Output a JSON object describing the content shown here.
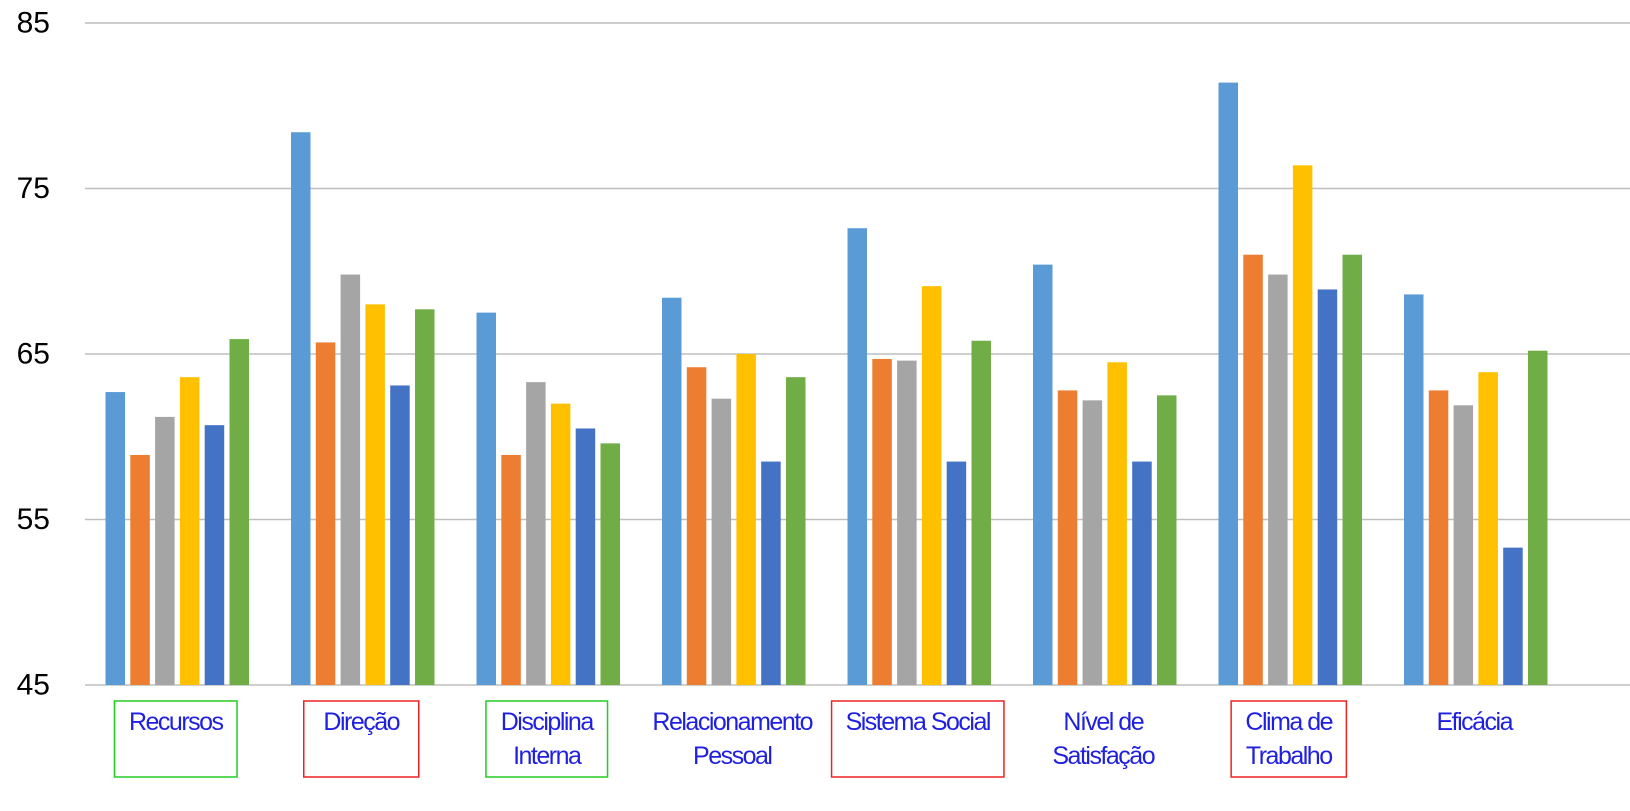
{
  "chart_data": {
    "type": "bar",
    "title": "",
    "xlabel": "",
    "ylabel": "",
    "ylim": [
      45,
      85
    ],
    "yticks": [
      45,
      55,
      65,
      75,
      85
    ],
    "grid": true,
    "legend": "none",
    "categories": [
      {
        "lines": [
          "Recursos"
        ],
        "box": "green"
      },
      {
        "lines": [
          "Direção"
        ],
        "box": "red"
      },
      {
        "lines": [
          "Disciplina",
          "Interna"
        ],
        "box": "green"
      },
      {
        "lines": [
          "Relacionamento",
          "Pessoal"
        ],
        "box": "none"
      },
      {
        "lines": [
          "Sistema Social"
        ],
        "box": "red"
      },
      {
        "lines": [
          "Nível de",
          "Satisfação"
        ],
        "box": "none"
      },
      {
        "lines": [
          "Clima de",
          "Trabalho"
        ],
        "box": "red"
      },
      {
        "lines": [
          "Eficácia"
        ],
        "box": "none"
      }
    ],
    "series": [
      {
        "color": "#5b9bd5",
        "values": [
          62.7,
          78.4,
          67.5,
          68.4,
          72.6,
          70.4,
          81.4,
          68.6
        ]
      },
      {
        "color": "#ed7d31",
        "values": [
          58.9,
          65.7,
          58.9,
          64.2,
          64.7,
          62.8,
          71.0,
          62.8
        ]
      },
      {
        "color": "#a5a5a5",
        "values": [
          61.2,
          69.8,
          63.3,
          62.3,
          64.6,
          62.2,
          69.8,
          61.9
        ]
      },
      {
        "color": "#ffc000",
        "values": [
          63.6,
          68.0,
          62.0,
          65.0,
          69.1,
          64.5,
          76.4,
          63.9
        ]
      },
      {
        "color": "#4472c4",
        "values": [
          60.7,
          63.1,
          60.5,
          58.5,
          58.5,
          58.5,
          68.9,
          53.3
        ]
      },
      {
        "color": "#70ad47",
        "values": [
          65.9,
          67.7,
          59.6,
          63.6,
          65.8,
          62.5,
          71.0,
          65.2
        ]
      }
    ],
    "colors": {
      "gridline": "#bfbfbf",
      "category_text": "#1f1fe0",
      "box_green": "#22cc22",
      "box_red": "#ee2222"
    }
  }
}
